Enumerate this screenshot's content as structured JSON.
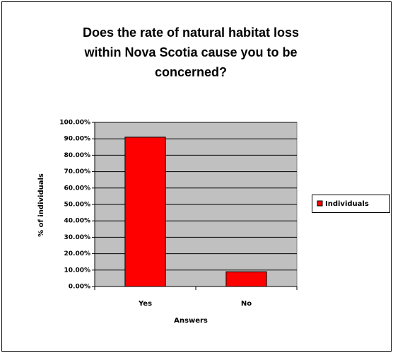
{
  "chart_data": {
    "type": "bar",
    "title": "Does the rate of natural habitat loss within Nova Scotia cause you to be concerned?",
    "x_label": "Answers",
    "y_label": "% of individuals",
    "categories": [
      "Yes",
      "No"
    ],
    "series": [
      {
        "name": "Individuals",
        "color": "#ff0000",
        "values": [
          91,
          9
        ]
      }
    ],
    "ylim": [
      0,
      100
    ],
    "yticks": [
      {
        "value": 0,
        "label": "0.00%"
      },
      {
        "value": 10,
        "label": "10.00%"
      },
      {
        "value": 20,
        "label": "20.00%"
      },
      {
        "value": 30,
        "label": "30.00%"
      },
      {
        "value": 40,
        "label": "40.00%"
      },
      {
        "value": 50,
        "label": "50.00%"
      },
      {
        "value": 60,
        "label": "60.00%"
      },
      {
        "value": 70,
        "label": "70.00%"
      },
      {
        "value": 80,
        "label": "80.00%"
      },
      {
        "value": 90,
        "label": "90.00%"
      },
      {
        "value": 100,
        "label": "100.00%"
      }
    ],
    "grid": true,
    "legend": "right"
  }
}
